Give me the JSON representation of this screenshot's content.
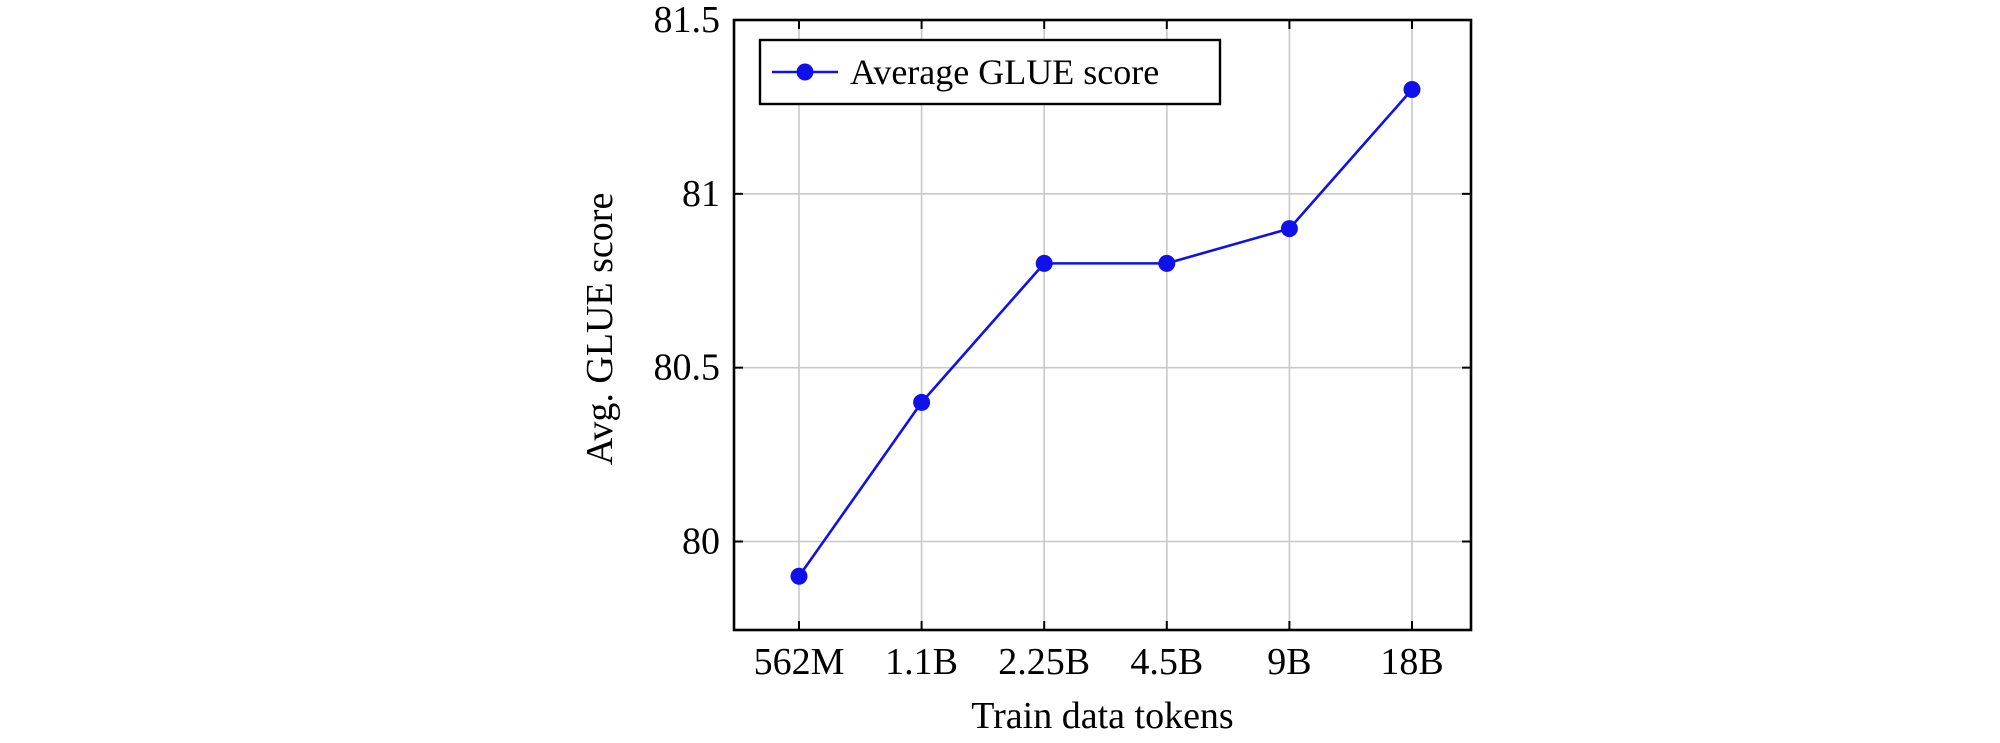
{
  "chart_data": {
    "type": "line",
    "title": "",
    "xlabel": "Train data tokens",
    "ylabel": "Avg. GLUE score",
    "categories": [
      "562M",
      "1.1B",
      "2.25B",
      "4.5B",
      "9B",
      "18B"
    ],
    "series": [
      {
        "name": "Average GLUE score",
        "values": [
          79.9,
          80.4,
          80.8,
          80.8,
          80.9,
          81.3
        ],
        "color": "#1010e8",
        "marker": "circle"
      }
    ],
    "ylim": [
      79.75,
      81.5
    ],
    "yticks": [
      80,
      80.5,
      81,
      81.5
    ],
    "ytick_labels": [
      "80",
      "80.5",
      "81",
      "81.5"
    ],
    "grid": true,
    "legend_position": "top-left"
  }
}
